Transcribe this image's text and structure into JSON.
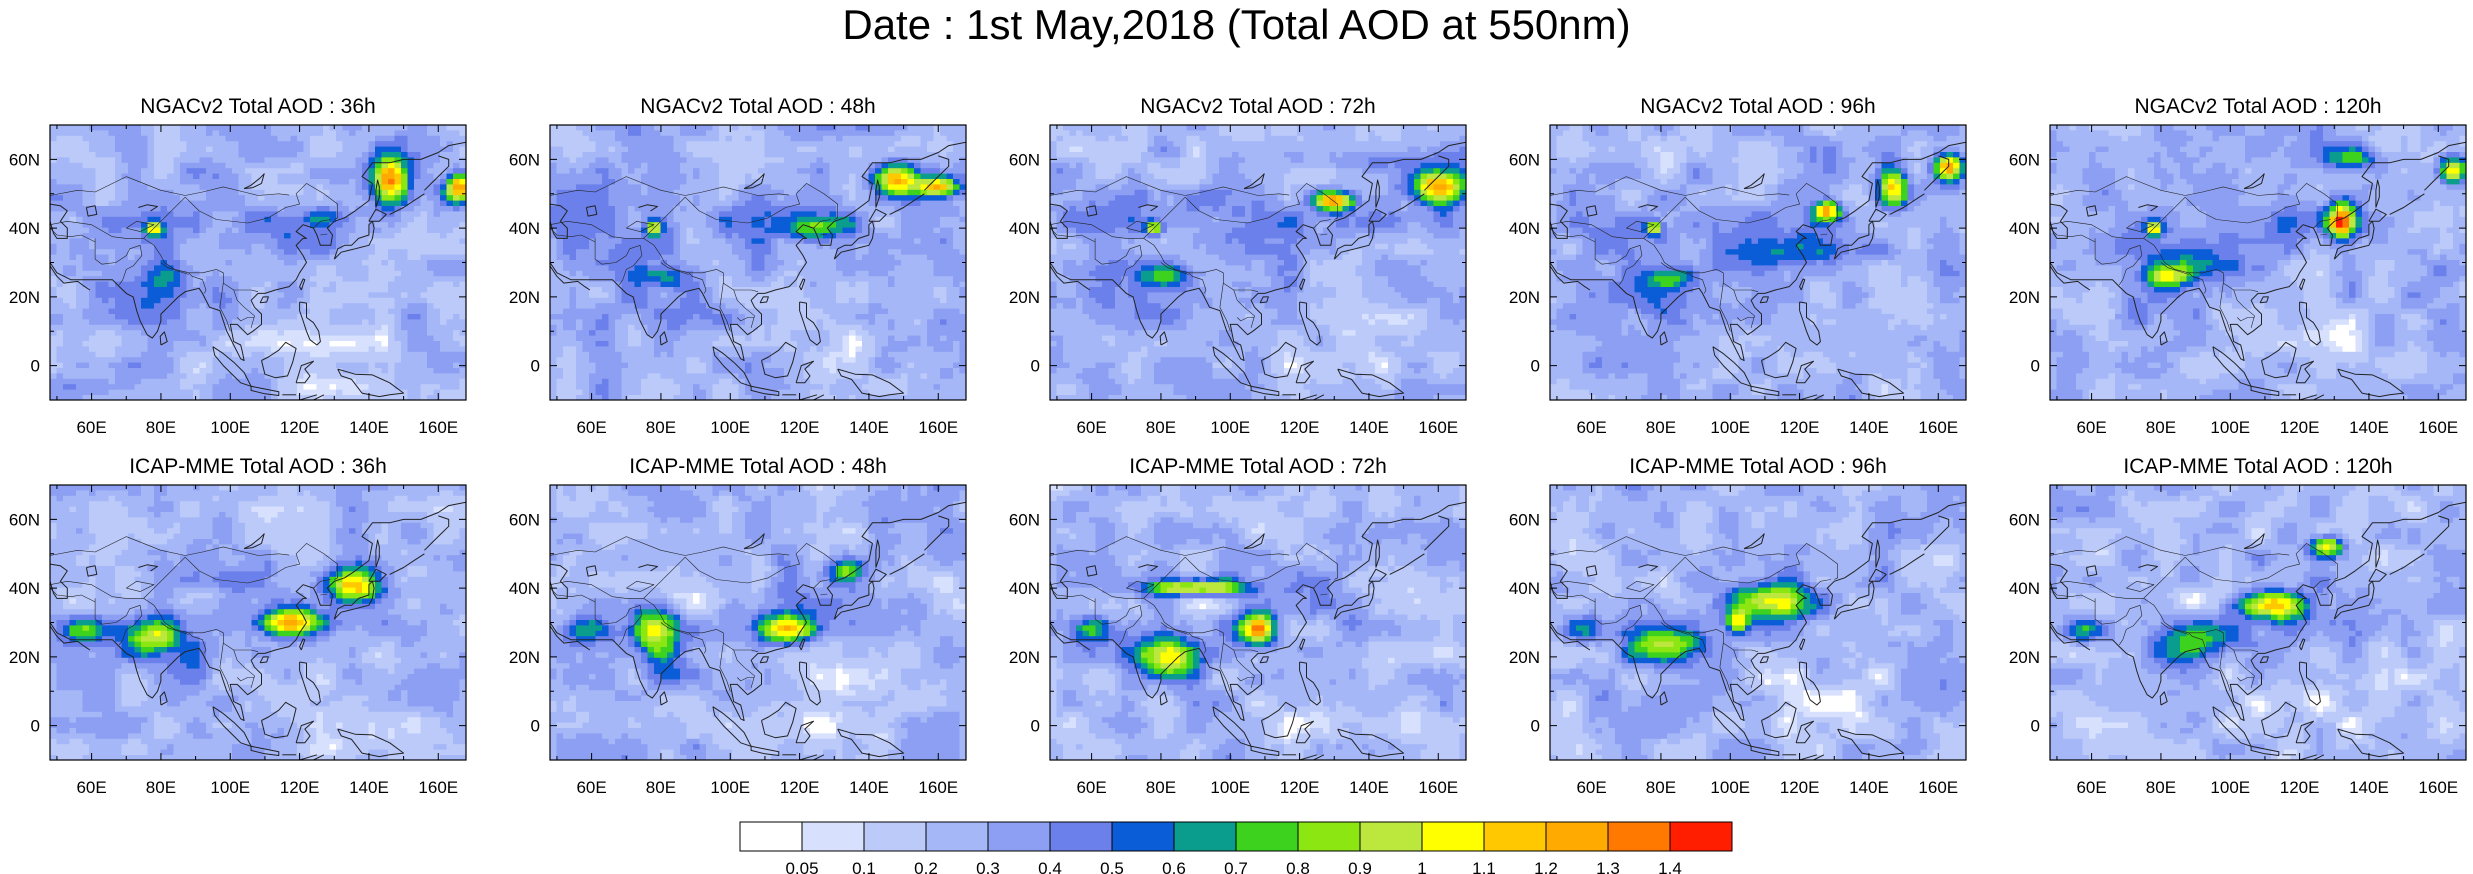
{
  "title": "Date : 1st May,2018 (Total AOD at 550nm)",
  "rows": [
    {
      "model": "NGACv2",
      "panels": [
        "NGACv2 Total AOD : 36h",
        "NGACv2 Total AOD : 48h",
        "NGACv2 Total AOD : 72h",
        "NGACv2 Total AOD : 96h",
        "NGACv2 Total AOD : 120h"
      ]
    },
    {
      "model": "ICAP-MME",
      "panels": [
        "ICAP-MME Total AOD : 36h",
        "ICAP-MME Total AOD : 48h",
        "ICAP-MME Total AOD : 72h",
        "ICAP-MME Total AOD : 96h",
        "ICAP-MME Total AOD : 120h"
      ]
    }
  ],
  "map": {
    "lon_range": [
      48,
      168
    ],
    "lat_range": [
      -10,
      70
    ],
    "lon_ticks": [
      "60E",
      "80E",
      "100E",
      "120E",
      "140E",
      "160E"
    ],
    "lon_tick_values": [
      60,
      80,
      100,
      120,
      140,
      160
    ],
    "lat_ticks": [
      "0",
      "20N",
      "40N",
      "60N"
    ],
    "lat_tick_values": [
      0,
      20,
      40,
      60
    ]
  },
  "colorbar": {
    "labels": [
      "0.05",
      "0.1",
      "0.2",
      "0.3",
      "0.4",
      "0.5",
      "0.6",
      "0.7",
      "0.8",
      "0.9",
      "1",
      "1.1",
      "1.2",
      "1.3",
      "1.4"
    ],
    "colors": [
      "#ffffff",
      "#d7e1fd",
      "#bccafa",
      "#a5b7f7",
      "#8c9ff2",
      "#6b80ea",
      "#0a5dd6",
      "#0a9c8c",
      "#3cd21e",
      "#8ce612",
      "#bce73d",
      "#ffff00",
      "#ffc800",
      "#ffaa00",
      "#ff7800",
      "#ff1e00"
    ]
  }
}
